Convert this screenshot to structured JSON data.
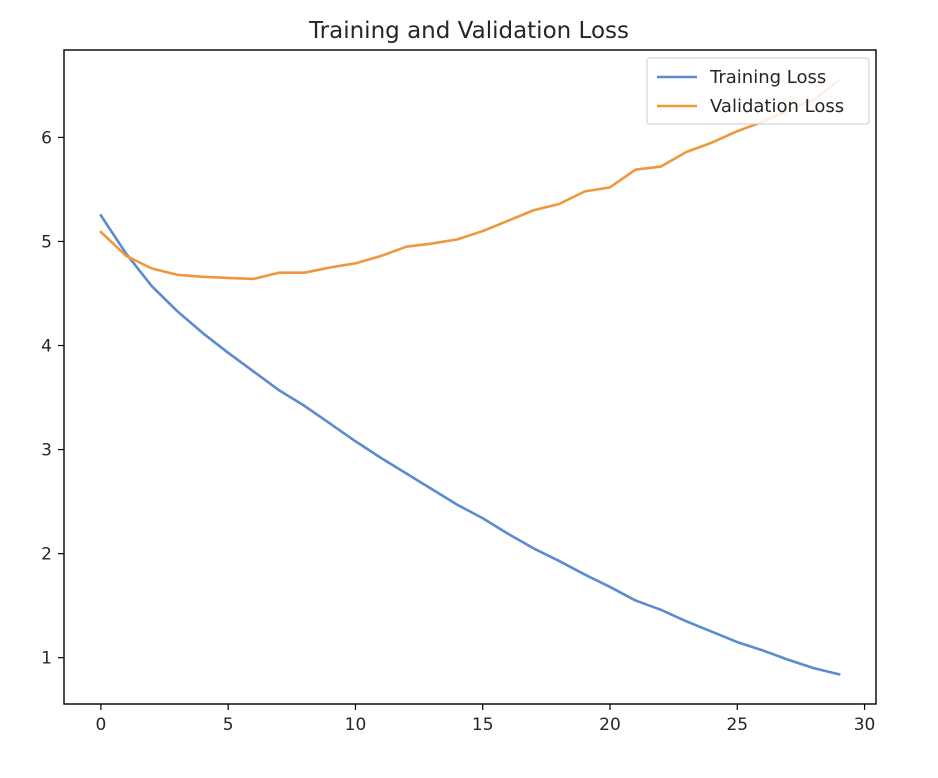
{
  "chart_data": {
    "type": "line",
    "title": "Training and Validation Loss",
    "xlabel": "",
    "ylabel": "",
    "x": [
      0,
      1,
      2,
      3,
      4,
      5,
      6,
      7,
      8,
      9,
      10,
      11,
      12,
      13,
      14,
      15,
      16,
      17,
      18,
      19,
      20,
      21,
      22,
      23,
      24,
      25,
      26,
      27,
      28,
      29
    ],
    "series": [
      {
        "name": "Training Loss",
        "color": "#5b8bd0",
        "values": [
          5.25,
          4.88,
          4.57,
          4.33,
          4.12,
          3.93,
          3.75,
          3.57,
          3.42,
          3.25,
          3.08,
          2.92,
          2.77,
          2.62,
          2.47,
          2.34,
          2.19,
          2.05,
          1.93,
          1.8,
          1.68,
          1.55,
          1.46,
          1.35,
          1.25,
          1.15,
          1.07,
          0.98,
          0.9,
          0.84
        ]
      },
      {
        "name": "Validation Loss",
        "color": "#f0973d",
        "values": [
          5.09,
          4.86,
          4.74,
          4.68,
          4.66,
          4.65,
          4.64,
          4.7,
          4.7,
          4.75,
          4.79,
          4.86,
          4.95,
          4.98,
          5.02,
          5.1,
          5.2,
          5.3,
          5.36,
          5.48,
          5.52,
          5.69,
          5.72,
          5.86,
          5.95,
          6.06,
          6.15,
          6.26,
          6.36,
          6.55
        ]
      }
    ],
    "xlim": [
      -1.45,
      30.45
    ],
    "ylim": [
      0.555,
      6.84
    ],
    "xticks": [
      0,
      5,
      10,
      15,
      20,
      25,
      30
    ],
    "yticks": [
      1,
      2,
      3,
      4,
      5,
      6
    ],
    "grid": false,
    "legend_position": "top-right"
  }
}
